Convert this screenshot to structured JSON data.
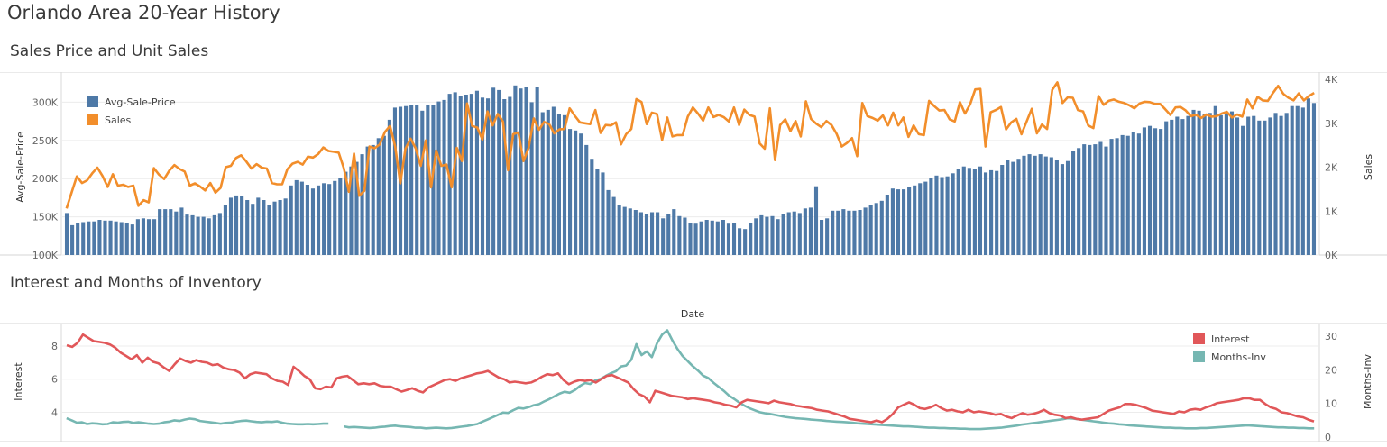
{
  "page": {
    "title": "Orlando Area 20-Year History"
  },
  "chart_data": [
    {
      "type": "bar",
      "title": "Sales Price and Unit Sales",
      "xlabel": "",
      "ylabel": "Avg-Sale-Price",
      "y2label": "Sales",
      "ylim": [
        100000,
        330000
      ],
      "y2lim": [
        0,
        4000
      ],
      "yticks": [
        "100K",
        "150K",
        "200K",
        "250K",
        "300K"
      ],
      "yticks_values": [
        100000,
        150000,
        200000,
        250000,
        300000
      ],
      "y2ticks": [
        "0K",
        "1K",
        "2K",
        "3K",
        "4K"
      ],
      "y2ticks_values": [
        0,
        1000,
        2000,
        3000,
        4000
      ],
      "legend": {
        "placement": "top-left",
        "items": [
          "Avg-Sale-Price",
          "Sales"
        ]
      },
      "colors": {
        "Avg-Sale-Price": "#4e79a7",
        "Sales": "#f28e2b"
      },
      "series": [
        {
          "name": "Avg-Sale-Price",
          "type": "bar",
          "values": [
            155000,
            139000,
            142000,
            143000,
            144000,
            144000,
            146000,
            145000,
            145000,
            144000,
            143000,
            142000,
            140000,
            147000,
            148000,
            147000,
            147000,
            160000,
            160000,
            160000,
            157000,
            162000,
            153000,
            152000,
            150000,
            150000,
            148000,
            152000,
            155000,
            165000,
            175000,
            178000,
            177000,
            172000,
            167000,
            175000,
            172000,
            166000,
            170000,
            172000,
            174000,
            191000,
            198000,
            196000,
            192000,
            187000,
            191000,
            194000,
            193000,
            197000,
            201000,
            209000,
            216000,
            222000,
            232000,
            242000,
            244000,
            253000,
            256000,
            277000,
            293000,
            294000,
            295000,
            296000,
            296000,
            289000,
            297000,
            297000,
            301000,
            303000,
            311000,
            313000,
            308000,
            310000,
            311000,
            315000,
            306000,
            305000,
            319000,
            316000,
            304000,
            307000,
            322000,
            318000,
            320000,
            300000,
            320000,
            287000,
            290000,
            294000,
            284000,
            283000,
            265000,
            263000,
            259000,
            244000,
            226000,
            212000,
            208000,
            185000,
            176000,
            166000,
            163000,
            161000,
            159000,
            156000,
            154000,
            156000,
            156000,
            148000,
            154000,
            160000,
            151000,
            149000,
            142000,
            141000,
            144000,
            146000,
            145000,
            144000,
            146000,
            141000,
            142000,
            135000,
            134000,
            142000,
            148000,
            152000,
            150000,
            151000,
            147000,
            154000,
            156000,
            157000,
            155000,
            161000,
            162000,
            190000,
            146000,
            148000,
            158000,
            158000,
            160000,
            158000,
            158000,
            159000,
            162000,
            166000,
            168000,
            171000,
            179000,
            187000,
            186000,
            186000,
            189000,
            191000,
            194000,
            196000,
            201000,
            204000,
            202000,
            203000,
            207000,
            213000,
            216000,
            214000,
            213000,
            216000,
            208000,
            211000,
            210000,
            218000,
            224000,
            222000,
            226000,
            230000,
            232000,
            230000,
            232000,
            229000,
            228000,
            225000,
            219000,
            223000,
            236000,
            240000,
            245000,
            244000,
            245000,
            248000,
            242000,
            252000,
            253000,
            257000,
            256000,
            261000,
            259000,
            267000,
            269000,
            266000,
            265000,
            275000,
            277000,
            281000,
            278000,
            282000,
            290000,
            289000,
            284000,
            286000,
            295000,
            283000,
            286000,
            288000,
            280000,
            269000,
            281000,
            282000,
            276000,
            276000,
            280000,
            286000,
            282000,
            286000,
            295000,
            295000,
            293000,
            305000,
            299000
          ],
          "note": ""
        },
        {
          "name": "Sales",
          "type": "line",
          "axis": "right",
          "values": [
            1060,
            1430,
            1790,
            1640,
            1700,
            1860,
            1990,
            1800,
            1550,
            1840,
            1580,
            1600,
            1550,
            1580,
            1120,
            1250,
            1200,
            1980,
            1830,
            1730,
            1920,
            2050,
            1960,
            1900,
            1580,
            1630,
            1560,
            1470,
            1640,
            1420,
            1530,
            2000,
            2030,
            2210,
            2270,
            2130,
            1970,
            2070,
            1990,
            1970,
            1640,
            1610,
            1610,
            1950,
            2080,
            2120,
            2060,
            2240,
            2220,
            2300,
            2450,
            2370,
            2350,
            2330,
            1980,
            1440,
            2310,
            1350,
            1460,
            2470,
            2430,
            2520,
            2800,
            2940,
            2470,
            1630,
            2420,
            2650,
            2430,
            2030,
            2610,
            1540,
            2380,
            2030,
            2060,
            1540,
            2440,
            2140,
            3450,
            2940,
            2900,
            2630,
            3270,
            2950,
            3210,
            3040,
            1930,
            2750,
            2790,
            2140,
            2440,
            3110,
            2850,
            3030,
            2980,
            2770,
            2860,
            2870,
            3340,
            3170,
            3020,
            3000,
            2980,
            3300,
            2780,
            2960,
            2950,
            3020,
            2520,
            2750,
            2870,
            3550,
            3480,
            2980,
            3240,
            3210,
            2620,
            3130,
            2700,
            2730,
            2730,
            3150,
            3360,
            3220,
            3060,
            3360,
            3140,
            3190,
            3140,
            3040,
            3360,
            2960,
            3310,
            3190,
            3150,
            2540,
            2420,
            3340,
            2160,
            2960,
            3090,
            2820,
            3050,
            2700,
            3500,
            3100,
            2990,
            2910,
            3050,
            2960,
            2760,
            2470,
            2550,
            2660,
            2250,
            3460,
            3160,
            3120,
            3060,
            3180,
            2950,
            3240,
            2950,
            3130,
            2690,
            2950,
            2750,
            2730,
            3510,
            3390,
            3290,
            3300,
            3090,
            3040,
            3480,
            3220,
            3430,
            3770,
            3780,
            2470,
            3250,
            3300,
            3370,
            2860,
            3020,
            3100,
            2750,
            3040,
            3330,
            2770,
            2970,
            2870,
            3760,
            3930,
            3460,
            3590,
            3580,
            3300,
            3270,
            2950,
            2890,
            3620,
            3420,
            3510,
            3540,
            3490,
            3460,
            3410,
            3340,
            3450,
            3490,
            3480,
            3440,
            3440,
            3320,
            3190,
            3360,
            3370,
            3290,
            3160,
            3190,
            3120,
            3200,
            3150,
            3160,
            3220,
            3260,
            3130,
            3200,
            3150,
            3540,
            3340,
            3600,
            3520,
            3510,
            3690,
            3850,
            3670,
            3580,
            3520,
            3680,
            3520,
            3620,
            3690
          ],
          "note": ""
        }
      ]
    },
    {
      "type": "line",
      "title": "Interest and Months of Inventory",
      "xlabel": "Date",
      "ylabel": "Interest",
      "y2label": "Months-Inv",
      "ylim": [
        2.5,
        9.2
      ],
      "y2lim": [
        0,
        33
      ],
      "yticks": [
        "4",
        "6",
        "8"
      ],
      "yticks_values": [
        4,
        6,
        8
      ],
      "y2ticks": [
        "0",
        "10",
        "20",
        "30"
      ],
      "y2ticks_values": [
        0,
        10,
        20,
        30
      ],
      "legend": {
        "placement": "top-right",
        "items": [
          "Interest",
          "Months-Inv"
        ]
      },
      "colors": {
        "Interest": "#e15759",
        "Months-Inv": "#76b7b2"
      },
      "series": [
        {
          "name": "Interest",
          "type": "line",
          "values": [
            8.05,
            7.95,
            8.2,
            8.7,
            8.5,
            8.3,
            8.25,
            8.2,
            8.1,
            7.9,
            7.6,
            7.4,
            7.2,
            7.45,
            7.0,
            7.3,
            7.05,
            6.95,
            6.7,
            6.5,
            6.9,
            7.25,
            7.1,
            7.0,
            7.15,
            7.05,
            7.0,
            6.85,
            6.9,
            6.7,
            6.6,
            6.55,
            6.4,
            6.05,
            6.3,
            6.4,
            6.35,
            6.3,
            6.05,
            5.9,
            5.85,
            5.65,
            6.75,
            6.5,
            6.2,
            6.0,
            5.45,
            5.4,
            5.55,
            5.5,
            6.05,
            6.15,
            6.2,
            5.95,
            5.7,
            5.75,
            5.7,
            5.75,
            5.6,
            5.55,
            5.55,
            5.4,
            5.25,
            5.35,
            5.45,
            5.3,
            5.2,
            5.5,
            5.65,
            5.8,
            5.95,
            6.0,
            5.9,
            6.05,
            6.15,
            6.25,
            6.35,
            6.4,
            6.5,
            6.3,
            6.1,
            6.0,
            5.8,
            5.85,
            5.8,
            5.75,
            5.8,
            5.95,
            6.15,
            6.3,
            6.25,
            6.35,
            5.95,
            5.7,
            5.85,
            5.95,
            5.9,
            5.95,
            5.8,
            6.0,
            6.2,
            6.25,
            6.1,
            5.95,
            5.8,
            5.4,
            5.1,
            4.95,
            4.6,
            5.3,
            5.2,
            5.1,
            5.0,
            4.95,
            4.9,
            4.8,
            4.85,
            4.8,
            4.75,
            4.7,
            4.6,
            4.55,
            4.45,
            4.4,
            4.3,
            4.6,
            4.75,
            4.7,
            4.65,
            4.6,
            4.55,
            4.7,
            4.6,
            4.55,
            4.5,
            4.4,
            4.35,
            4.3,
            4.25,
            4.15,
            4.1,
            4.05,
            3.95,
            3.85,
            3.75,
            3.6,
            3.55,
            3.5,
            3.45,
            3.4,
            3.5,
            3.4,
            3.6,
            3.9,
            4.3,
            4.45,
            4.6,
            4.45,
            4.25,
            4.2,
            4.3,
            4.45,
            4.25,
            4.1,
            4.15,
            4.05,
            4.0,
            4.15,
            4.0,
            4.05,
            4.0,
            3.95,
            3.85,
            3.9,
            3.75,
            3.65,
            3.8,
            3.95,
            3.85,
            3.9,
            4.0,
            4.15,
            3.95,
            3.85,
            3.8,
            3.65,
            3.7,
            3.6,
            3.55,
            3.6,
            3.65,
            3.7,
            3.9,
            4.1,
            4.2,
            4.3,
            4.5,
            4.5,
            4.45,
            4.35,
            4.25,
            4.1,
            4.05,
            4.0,
            3.95,
            3.9,
            4.05,
            4.0,
            4.15,
            4.2,
            4.15,
            4.3,
            4.4,
            4.55,
            4.6,
            4.65,
            4.7,
            4.75,
            4.85,
            4.85,
            4.75,
            4.75,
            4.5,
            4.3,
            4.2,
            4.0,
            3.95,
            3.85,
            3.75,
            3.7,
            3.55,
            3.45
          ],
          "note": ""
        },
        {
          "name": "Months-Inv",
          "type": "line",
          "axis": "right",
          "values": [
            5.6,
            5.0,
            4.3,
            4.4,
            3.9,
            4.1,
            4.0,
            3.8,
            3.9,
            4.4,
            4.3,
            4.5,
            4.6,
            4.2,
            4.4,
            4.2,
            4.0,
            3.9,
            4.0,
            4.4,
            4.6,
            5.0,
            4.8,
            5.2,
            5.5,
            5.3,
            4.8,
            4.6,
            4.4,
            4.2,
            4.0,
            4.2,
            4.3,
            4.6,
            4.8,
            4.9,
            4.7,
            4.5,
            4.4,
            4.6,
            4.5,
            4.7,
            4.3,
            4.0,
            3.9,
            3.8,
            3.8,
            3.9,
            3.8,
            3.9,
            4.0,
            4.0,
            null,
            null,
            3.2,
            2.9,
            3.0,
            2.9,
            2.8,
            2.7,
            2.8,
            3.0,
            3.1,
            3.3,
            3.4,
            3.2,
            3.1,
            3.0,
            2.8,
            2.8,
            2.6,
            2.7,
            2.8,
            2.7,
            2.6,
            2.7,
            2.9,
            3.1,
            3.3,
            3.6,
            3.9,
            4.6,
            5.2,
            5.9,
            6.6,
            7.3,
            7.2,
            8.0,
            8.7,
            8.5,
            8.9,
            9.5,
            9.8,
            10.6,
            11.3,
            12.1,
            12.9,
            13.5,
            13.2,
            14.0,
            15.2,
            16.1,
            15.8,
            16.9,
            17.3,
            18.2,
            19.0,
            19.6,
            21.0,
            21.3,
            23.0,
            27.7,
            24.4,
            25.5,
            23.8,
            27.9,
            30.5,
            31.8,
            28.8,
            26.2,
            24.1,
            22.6,
            21.1,
            19.8,
            18.3,
            17.6,
            16.2,
            15.0,
            13.8,
            12.4,
            11.4,
            10.3,
            9.4,
            8.6,
            8.0,
            7.4,
            7.1,
            6.9,
            6.6,
            6.3,
            6.0,
            5.8,
            5.6,
            5.5,
            5.4,
            5.2,
            5.1,
            5.0,
            4.8,
            4.7,
            4.6,
            4.5,
            4.4,
            4.3,
            4.1,
            4.0,
            3.9,
            3.8,
            3.7,
            3.6,
            3.5,
            3.4,
            3.3,
            3.2,
            3.2,
            3.1,
            3.0,
            2.9,
            2.8,
            2.8,
            2.7,
            2.7,
            2.6,
            2.6,
            2.5,
            2.5,
            2.4,
            2.4,
            2.4,
            2.5,
            2.6,
            2.7,
            2.8,
            3.0,
            3.2,
            3.4,
            3.7,
            3.9,
            4.1,
            4.3,
            4.5,
            4.7,
            4.9,
            5.1,
            5.3,
            5.6,
            5.5,
            5.3,
            5.1,
            4.9,
            4.7,
            4.5,
            4.3,
            4.1,
            4.0,
            3.8,
            3.7,
            3.5,
            3.4,
            3.3,
            3.2,
            3.1,
            3.0,
            2.9,
            2.8,
            2.8,
            2.7,
            2.7,
            2.6,
            2.6,
            2.6,
            2.7,
            2.7,
            2.8,
            2.9,
            3.0,
            3.1,
            3.2,
            3.3,
            3.4,
            3.5,
            3.4,
            3.3,
            3.2,
            3.1,
            3.0,
            2.9,
            2.9,
            2.8,
            2.8,
            2.7,
            2.7,
            2.6,
            2.6
          ],
          "note": ""
        }
      ]
    }
  ]
}
